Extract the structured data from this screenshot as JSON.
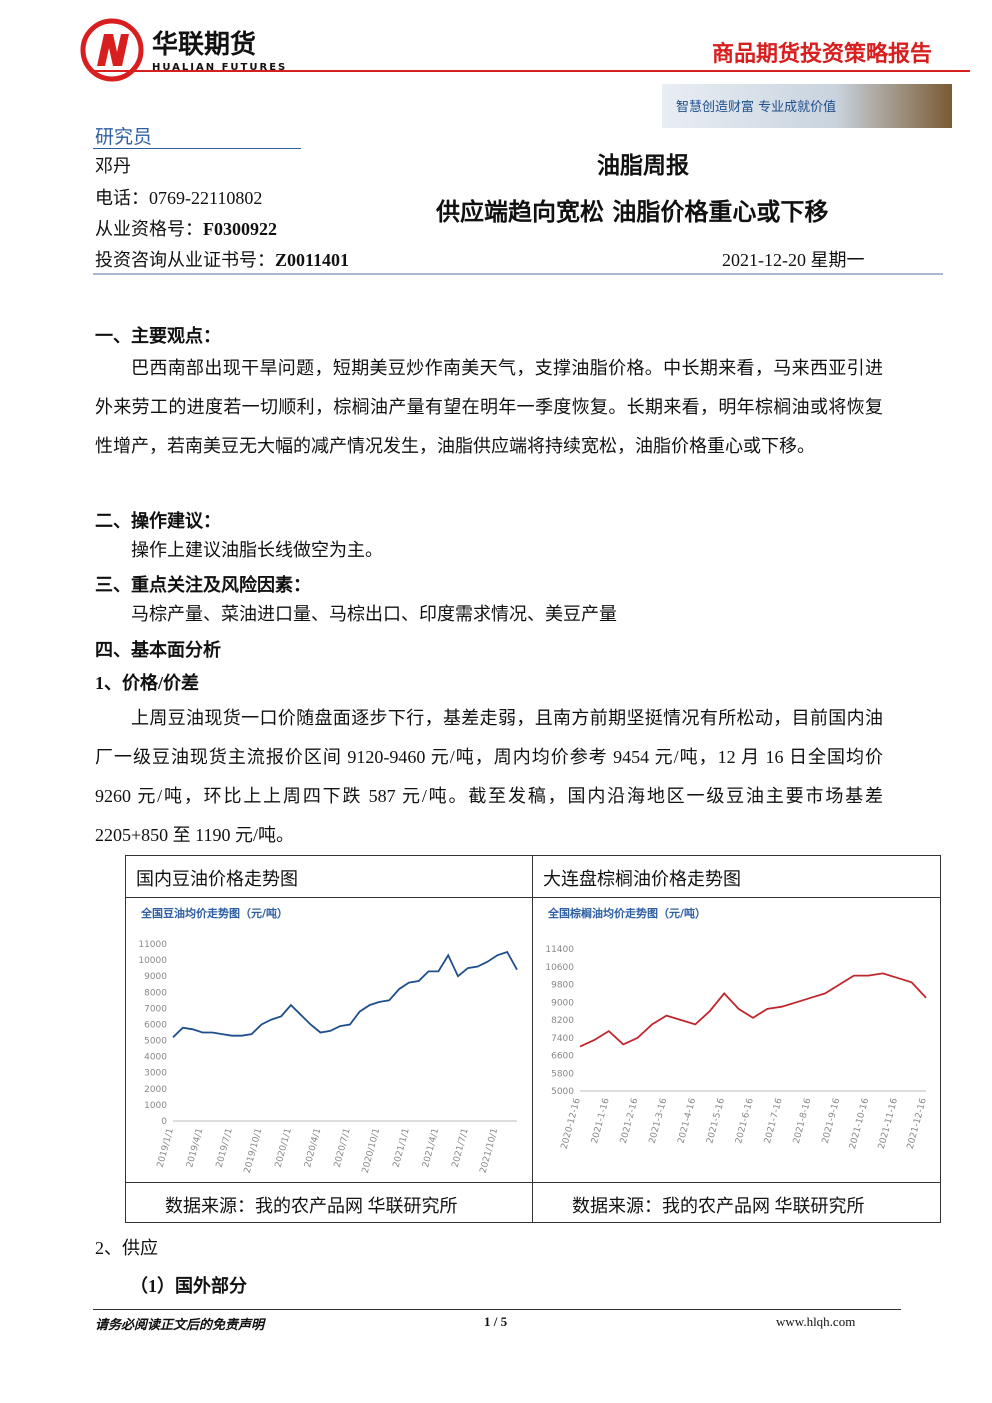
{
  "header": {
    "company": "华联期货",
    "company_en": "HUALIAN FUTURES",
    "report_type": "商品期货投资策略报告",
    "slogan": "智慧创造财富  专业成就价值"
  },
  "analyst": {
    "heading": "研究员",
    "name": "邓丹",
    "phone": "电话：0769-22110802",
    "qualification": {
      "label": "从业资格号：",
      "value": "F0300922"
    },
    "certificate": {
      "label": "投资咨询从业证书号：",
      "value": "Z0011401"
    }
  },
  "report": {
    "title": "油脂周报",
    "subtitle": "供应端趋向宽松  油脂价格重心或下移",
    "date": "2021-12-20 星期一"
  },
  "sections": [
    {
      "heading": "一、主要观点：",
      "text": "巴西南部出现干旱问题，短期美豆炒作南美天气，支撑油脂价格。中长期来看，马来西亚引进外来劳工的进度若一切顺利，棕榈油产量有望在明年一季度恢复。长期来看，明年棕榈油或将恢复性增产，若南美豆无大幅的减产情况发生，油脂供应端将持续宽松，油脂价格重心或下移。"
    },
    {
      "heading": "二、操作建议：",
      "text": "操作上建议油脂长线做空为主。"
    },
    {
      "heading": "三、重点关注及风险因素：",
      "text": "马棕产量、菜油进口量、马棕出口、印度需求情况、美豆产量"
    },
    {
      "heading": "四、基本面分析"
    },
    {
      "heading": "1、价格/价差",
      "text": "上周豆油现货一口价随盘面逐步下行，基差走弱，且南方前期坚挺情况有所松动，目前国内油厂一级豆油现货主流报价区间 9120-9460 元/吨，周内均价参考 9454 元/吨，12 月 16 日全国均价 9260 元/吨，环比上上周四下跌 587 元/吨。截至发稿，国内沿海地区一级豆油主要市场基差 2205+850 至 1190 元/吨。"
    }
  ],
  "table": {
    "headers": [
      "国内豆油价格走势图",
      "大连盘棕榈油价格走势图"
    ],
    "sources": [
      "数据来源：我的农产品网  华联研究所",
      "数据来源：我的农产品网  华联研究所"
    ]
  },
  "after": {
    "heading1": "2、供应",
    "heading2": "（1）国外部分"
  },
  "footer": {
    "disclaimer": "请务必阅读正文后的免责声明",
    "page": "1 / 5",
    "site": "www.hlqh.com"
  },
  "chart_data": [
    {
      "type": "line",
      "title": "全国豆油均价走势图（元/吨）",
      "color": "#1f4e8c",
      "grid": false,
      "categories": [
        "2019/1/1",
        null,
        null,
        "2019/4/1",
        null,
        null,
        "2019/7/1",
        null,
        null,
        "2019/10/1",
        null,
        null,
        "2020/1/1",
        null,
        null,
        "2020/4/1",
        null,
        null,
        "2020/7/1",
        null,
        null,
        "2020/10/1",
        null,
        null,
        "2021/1/1",
        null,
        null,
        "2021/4/1",
        null,
        null,
        "2021/7/1",
        null,
        null,
        "2021/10/1",
        null,
        null
      ],
      "values": [
        5200,
        5800,
        5700,
        5500,
        5500,
        5400,
        5300,
        5300,
        5400,
        6000,
        6300,
        6500,
        7200,
        6600,
        6000,
        5500,
        5600,
        5900,
        6000,
        6800,
        7200,
        7400,
        7500,
        8200,
        8600,
        8700,
        9300,
        9300,
        10300,
        9000,
        9500,
        9600,
        9900,
        10300,
        10500,
        9400
      ],
      "ylim": [
        0,
        11000
      ],
      "yticks": [
        0,
        1000,
        2000,
        3000,
        4000,
        5000,
        6000,
        7000,
        8000,
        9000,
        10000,
        11000
      ]
    },
    {
      "type": "line",
      "title": "全国棕榈油均价走势图（元/吨）",
      "color": "#c0272d",
      "grid": false,
      "categories": [
        "2020-12-16",
        null,
        "2021-1-16",
        null,
        "2021-2-16",
        null,
        "2021-3-16",
        null,
        "2021-4-16",
        null,
        "2021-5-16",
        null,
        "2021-6-16",
        null,
        "2021-7-16",
        null,
        "2021-8-16",
        null,
        "2021-9-16",
        null,
        "2021-10-16",
        null,
        "2021-11-16",
        null,
        "2021-12-16"
      ],
      "values": [
        7000,
        7300,
        7700,
        7100,
        7400,
        8000,
        8400,
        8200,
        8000,
        8600,
        9400,
        8700,
        8300,
        8700,
        8800,
        9000,
        9200,
        9400,
        9800,
        10200,
        10200,
        10300,
        10100,
        9900,
        9200
      ],
      "ylim": [
        5000,
        11400
      ],
      "yticks": [
        5000,
        5800,
        6600,
        7400,
        8200,
        9000,
        9800,
        10600,
        11400
      ]
    }
  ]
}
